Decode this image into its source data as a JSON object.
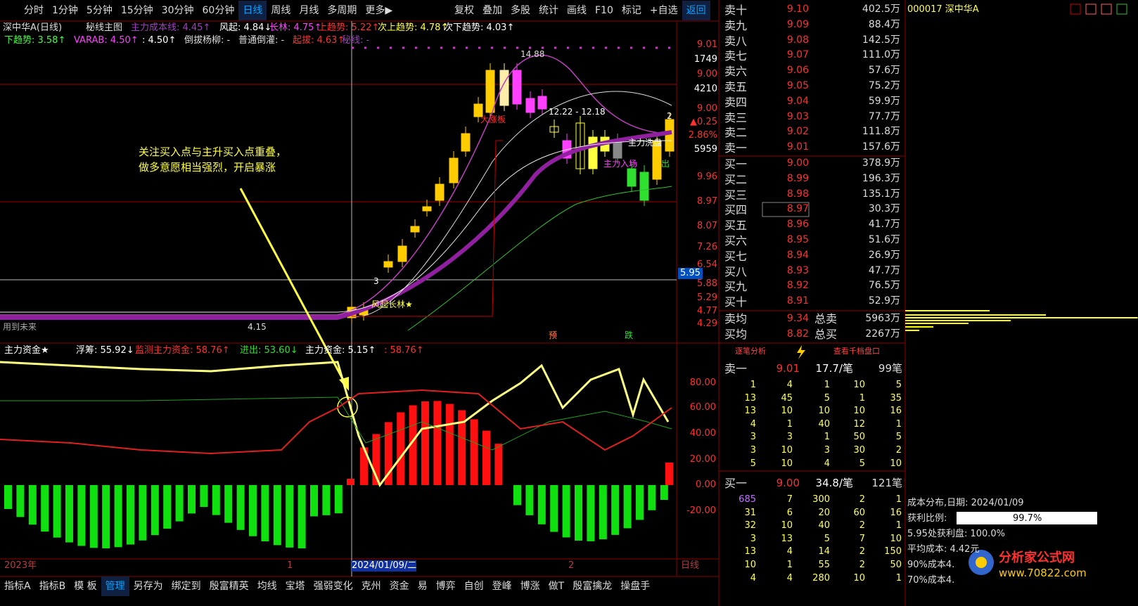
{
  "toolbar": {
    "periods": [
      "分时",
      "1分钟",
      "5分钟",
      "15分钟",
      "30分钟",
      "60分钟",
      "日线",
      "周线",
      "月线",
      "多周期",
      "更多▶"
    ],
    "tools": [
      "复权",
      "叠加",
      "多股",
      "统计",
      "画线",
      "F10",
      "标记",
      "+自选",
      "返回"
    ]
  },
  "main_chart": {
    "title": "深中华A(日线)",
    "indicator": "秘线主图",
    "params": [
      "主力成本线: 4.45↑",
      "风起: 4.84↓",
      "长林: 4.75↑",
      "上趋势: 5.22↑",
      "次上趋势: 4.78↑",
      "次下趋势: 4.03↑"
    ],
    "params2": [
      "下趋势: 3.58↑",
      "VARAB: 4.50↑",
      ": 4.50↑",
      "倒拔杨柳: -",
      "普通倒灌: -",
      "起拔: 4.63↑",
      "秘线: -"
    ],
    "price_axis": [
      "9.01",
      "1749",
      "9.00",
      "4210",
      "9.00",
      "▲0.25",
      "2.86%",
      "5959",
      "9.96",
      "8.97",
      "8.07",
      "7.26",
      "6.54",
      "5.88",
      "5.29",
      "4.77",
      "4.29"
    ],
    "current_price": "5.95",
    "labels": [
      "14.88",
      "12.22 - 12.18",
      "大涨板",
      "风起长林★",
      "主力洗盘",
      "主力入场",
      "出",
      "预",
      "跌",
      "4.15",
      "用到未来",
      "3",
      "2"
    ],
    "annotation": [
      "关注买入点与主升买入点重叠，",
      "做多意愿相当强烈，开启暴涨"
    ]
  },
  "sub_chart": {
    "title": "主力资金★",
    "params": [
      "浮筹: 55.92↓",
      "监测主力资金: 58.76↑",
      "进出: 53.60↓",
      "主力资金: 5.15↑",
      ": 58.76↑"
    ],
    "axis": [
      "80.00",
      "60.00",
      "40.00",
      "20.00",
      "0.00",
      "-20.00"
    ]
  },
  "date_bar": [
    "2023年",
    "1",
    "2024/01/09/二",
    "2",
    "日线"
  ],
  "bottom_tabs": [
    "指标A",
    "指标B",
    "模 板",
    "管理",
    "另存为",
    "绑定到",
    "殷富精英",
    "均线",
    "宝塔",
    "强弱变化",
    "克州",
    "资金",
    "易",
    "博弈",
    "自创",
    "登峰",
    "博涨",
    "做T",
    "殷富擒龙",
    "操盘手"
  ],
  "order_book": {
    "sell": [
      [
        "卖十",
        "9.10",
        "402.5万"
      ],
      [
        "卖九",
        "9.09",
        "88.4万"
      ],
      [
        "卖八",
        "9.08",
        "142.5万"
      ],
      [
        "卖七",
        "9.07",
        "111.0万"
      ],
      [
        "卖六",
        "9.06",
        "57.6万"
      ],
      [
        "卖五",
        "9.05",
        "75.2万"
      ],
      [
        "卖四",
        "9.04",
        "59.9万"
      ],
      [
        "卖三",
        "9.03",
        "77.7万"
      ],
      [
        "卖二",
        "9.02",
        "111.8万"
      ],
      [
        "卖一",
        "9.01",
        "157.6万"
      ]
    ],
    "buy": [
      [
        "买一",
        "9.00",
        "378.9万"
      ],
      [
        "买二",
        "8.99",
        "196.3万"
      ],
      [
        "买三",
        "8.98",
        "135.1万"
      ],
      [
        "买四",
        "8.97",
        "30.3万"
      ],
      [
        "买五",
        "8.96",
        "41.7万"
      ],
      [
        "买六",
        "8.95",
        "51.6万"
      ],
      [
        "买七",
        "8.94",
        "26.9万"
      ],
      [
        "买八",
        "8.93",
        "47.7万"
      ],
      [
        "买九",
        "8.92",
        "76.5万"
      ],
      [
        "买十",
        "8.91",
        "52.9万"
      ]
    ],
    "sell_avg": [
      "卖均",
      "9.34",
      "总卖",
      "5963万"
    ],
    "buy_avg": [
      "买均",
      "8.82",
      "总买",
      "2267万"
    ]
  },
  "queue": {
    "buttons": [
      "逐笔分析",
      "查看千档盘口"
    ],
    "sell": {
      "head": [
        "卖一",
        "9.01",
        "17.7/笔",
        "99笔"
      ],
      "rows": [
        [
          "1",
          "4",
          "1",
          "10",
          "5"
        ],
        [
          "13",
          "45",
          "5",
          "1",
          "35"
        ],
        [
          "13",
          "10",
          "10",
          "10",
          "16"
        ],
        [
          "4",
          "1",
          "40",
          "12",
          "1"
        ],
        [
          "3",
          "3",
          "1",
          "50",
          "5"
        ],
        [
          "3",
          "10",
          "3",
          "30",
          "2"
        ],
        [
          "5",
          "10",
          "4",
          "5",
          "10"
        ]
      ]
    },
    "buy": {
      "head": [
        "买一",
        "9.00",
        "34.8/笔",
        "121笔"
      ],
      "rows": [
        [
          "685",
          "7",
          "300",
          "2",
          "1"
        ],
        [
          "31",
          "6",
          "20",
          "60",
          "16"
        ],
        [
          "32",
          "10",
          "40",
          "2",
          "1"
        ],
        [
          "3",
          "13",
          "5",
          "7",
          "10"
        ],
        [
          "13",
          "4",
          "14",
          "2",
          "150"
        ],
        [
          "10",
          "1",
          "55",
          "2",
          "50"
        ],
        [
          "4",
          "4",
          "280",
          "10",
          "1"
        ]
      ]
    }
  },
  "cost": {
    "stock": "000017 深中华A",
    "rows": [
      "成本分布,日期:  2024/01/09",
      "获利比例:",
      "99.7%",
      "5.95处获利盘: 100.0%",
      "平均成本: 4.42元",
      "90%成本4.",
      "70%成本4."
    ]
  },
  "watermark": {
    "name": "分析家公式网",
    "url": "www.70822.com"
  }
}
